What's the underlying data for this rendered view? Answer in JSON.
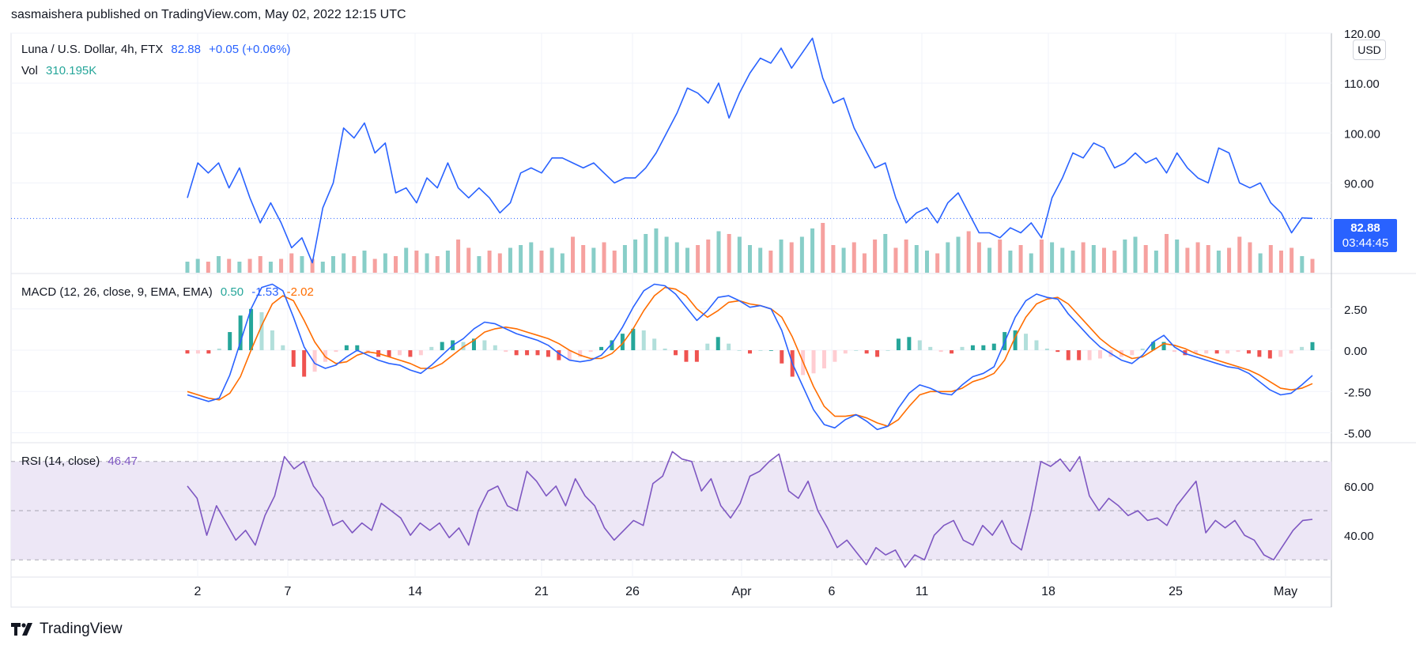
{
  "header": {
    "published_by": "sasmaishera published on TradingView.com, May 02, 2022 12:15 UTC"
  },
  "price_pane": {
    "symbol_title": "Luna / U.S. Dollar, 4h, FTX",
    "last": "82.88",
    "change": "+0.05 (+0.06%)",
    "vol_label": "Vol",
    "vol_value": "310.195K",
    "currency": "USD",
    "tag_price": "82.88",
    "tag_countdown": "03:44:45"
  },
  "macd_pane": {
    "title": "MACD (12, 26, close, 9, EMA, EMA)",
    "hist": "0.50",
    "macd": "-1.53",
    "signal": "-2.02"
  },
  "rsi_pane": {
    "title": "RSI (14, close)",
    "value": "46.47"
  },
  "brand": {
    "name": "TradingView"
  },
  "colors": {
    "price_line": "#2962ff",
    "vol_up": "#26a69a",
    "vol_down": "#ef5350",
    "macd_line": "#2962ff",
    "signal_line": "#ff6d00",
    "rsi_line": "#7e57c2",
    "rsi_band": "#ede7f6",
    "grid": "#f0f3fa"
  },
  "chart_data": [
    {
      "type": "line",
      "pane": "price",
      "x_ticks": [
        "2",
        "7",
        "14",
        "21",
        "26",
        "Apr",
        "6",
        "11",
        "18",
        "25",
        "May"
      ],
      "y_ticks": [
        "120.00",
        "110.00",
        "100.00",
        "90.00"
      ],
      "ylim": [
        72,
        120
      ],
      "series": [
        {
          "values": [
            87,
            94,
            92,
            94,
            89,
            93,
            87,
            82,
            86,
            82,
            77,
            79,
            74,
            85,
            90,
            101,
            99,
            102,
            96,
            98,
            88,
            89,
            86,
            91,
            89,
            94,
            89,
            87,
            89,
            87,
            84,
            86,
            92,
            93,
            92,
            95,
            95,
            94,
            93,
            94,
            92,
            90,
            91,
            91,
            93,
            96,
            100,
            104,
            109,
            108,
            106,
            110,
            103,
            108,
            112,
            115,
            114,
            117,
            113,
            116,
            119,
            111,
            106,
            107,
            101,
            97,
            93,
            94,
            87,
            82,
            84,
            85,
            82,
            86,
            88,
            84,
            80,
            80,
            79,
            81,
            80,
            82,
            79,
            87,
            91,
            96,
            95,
            98,
            97,
            93,
            94,
            96,
            94,
            95,
            92,
            96,
            93,
            91,
            90,
            97,
            96,
            90,
            89,
            90,
            86,
            84,
            80,
            83,
            82.88
          ]
        },
        {
          "name": "Vol",
          "values": [
            4,
            5,
            4,
            6,
            5,
            4,
            5,
            6,
            4,
            5,
            7,
            6,
            5,
            4,
            6,
            7,
            6,
            8,
            5,
            7,
            6,
            9,
            8,
            7,
            6,
            8,
            12,
            9,
            6,
            8,
            7,
            9,
            10,
            11,
            8,
            9,
            7,
            13,
            10,
            9,
            11,
            8,
            10,
            12,
            14,
            16,
            13,
            11,
            9,
            10,
            12,
            15,
            14,
            13,
            10,
            9,
            8,
            12,
            11,
            13,
            16,
            18,
            10,
            9,
            11,
            7,
            12,
            14,
            9,
            12,
            10,
            8,
            7,
            11,
            13,
            15,
            11,
            9,
            12,
            8,
            10,
            7,
            12,
            11,
            9,
            8,
            11,
            10,
            9,
            8,
            12,
            13,
            10,
            8,
            14,
            12,
            9,
            11,
            10,
            8,
            9,
            13,
            11,
            7,
            10,
            8,
            9,
            6,
            5
          ]
        }
      ]
    },
    {
      "type": "line",
      "pane": "macd",
      "y_ticks": [
        "2.50",
        "0.00",
        "-2.50",
        "-5.00"
      ],
      "ylim": [
        -5.5,
        4.5
      ],
      "series": [
        {
          "name": "MACD",
          "values": [
            -2.7,
            -2.9,
            -3.1,
            -2.9,
            -1.5,
            0.5,
            2.5,
            3.8,
            4.0,
            3.6,
            2.0,
            0.2,
            -0.8,
            -1.1,
            -0.9,
            -0.4,
            0.0,
            -0.3,
            -0.6,
            -0.8,
            -0.9,
            -1.2,
            -1.4,
            -0.9,
            -0.3,
            0.3,
            0.7,
            1.3,
            1.7,
            1.6,
            1.3,
            1.0,
            0.8,
            0.6,
            0.3,
            -0.2,
            -0.6,
            -0.7,
            -0.6,
            -0.3,
            0.4,
            1.4,
            2.6,
            3.6,
            4.0,
            3.9,
            3.4,
            2.6,
            1.8,
            2.4,
            3.2,
            3.3,
            3.0,
            2.6,
            2.7,
            2.5,
            1.2,
            -0.8,
            -2.2,
            -3.6,
            -4.5,
            -4.7,
            -4.2,
            -3.9,
            -4.3,
            -4.8,
            -4.6,
            -3.5,
            -2.6,
            -2.1,
            -2.3,
            -2.6,
            -2.7,
            -2.1,
            -1.6,
            -1.4,
            -1.0,
            0.5,
            2.0,
            3.0,
            3.4,
            3.2,
            3.1,
            2.2,
            1.5,
            0.8,
            0.2,
            -0.2,
            -0.6,
            -0.8,
            -0.3,
            0.5,
            0.9,
            0.2,
            -0.2,
            -0.4,
            -0.6,
            -0.8,
            -1.0,
            -1.1,
            -1.4,
            -1.9,
            -2.4,
            -2.7,
            -2.6,
            -2.1,
            -1.53
          ]
        },
        {
          "name": "Signal",
          "values": [
            -2.5,
            -2.7,
            -2.9,
            -3.0,
            -2.6,
            -1.6,
            0.0,
            1.5,
            2.8,
            3.3,
            3.0,
            1.8,
            0.5,
            -0.4,
            -0.8,
            -0.7,
            -0.3,
            -0.1,
            -0.2,
            -0.4,
            -0.6,
            -0.8,
            -1.1,
            -1.1,
            -0.8,
            -0.3,
            0.2,
            0.6,
            1.1,
            1.3,
            1.4,
            1.3,
            1.1,
            0.9,
            0.7,
            0.4,
            0.0,
            -0.3,
            -0.5,
            -0.5,
            -0.2,
            0.4,
            1.3,
            2.4,
            3.3,
            3.8,
            3.7,
            3.3,
            2.5,
            2.0,
            2.4,
            2.9,
            3.0,
            2.8,
            2.7,
            2.5,
            2.0,
            0.8,
            -0.7,
            -2.2,
            -3.4,
            -4.0,
            -4.0,
            -3.9,
            -4.1,
            -4.4,
            -4.6,
            -4.2,
            -3.4,
            -2.7,
            -2.5,
            -2.5,
            -2.5,
            -2.3,
            -1.9,
            -1.7,
            -1.4,
            -0.6,
            0.8,
            2.0,
            2.8,
            3.1,
            3.2,
            2.8,
            2.1,
            1.4,
            0.7,
            0.2,
            -0.2,
            -0.5,
            -0.4,
            0.0,
            0.4,
            0.3,
            0.1,
            -0.2,
            -0.4,
            -0.6,
            -0.8,
            -1.0,
            -1.2,
            -1.5,
            -1.9,
            -2.3,
            -2.4,
            -2.3,
            -2.02
          ]
        }
      ]
    },
    {
      "type": "line",
      "pane": "rsi",
      "y_ticks": [
        "60.00",
        "40.00"
      ],
      "ylim": [
        23,
        77
      ],
      "series": [
        {
          "name": "RSI",
          "values": [
            60,
            55,
            40,
            52,
            45,
            38,
            42,
            36,
            48,
            56,
            72,
            67,
            70,
            60,
            55,
            44,
            46,
            41,
            45,
            42,
            53,
            50,
            47,
            40,
            45,
            42,
            45,
            39,
            43,
            36,
            50,
            58,
            60,
            52,
            50,
            66,
            62,
            56,
            60,
            52,
            63,
            56,
            52,
            43,
            38,
            42,
            46,
            44,
            61,
            64,
            74,
            71,
            70,
            58,
            63,
            52,
            47,
            53,
            64,
            66,
            70,
            73,
            58,
            55,
            62,
            50,
            43,
            35,
            38,
            33,
            28,
            35,
            32,
            34,
            27,
            32,
            30,
            40,
            44,
            46,
            38,
            36,
            44,
            40,
            46,
            37,
            34,
            50,
            70,
            68,
            71,
            66,
            72,
            56,
            50,
            55,
            52,
            48,
            50,
            46,
            47,
            44,
            52,
            57,
            62,
            41,
            46,
            43,
            46,
            40,
            38,
            32,
            30,
            36,
            42,
            46,
            46.47
          ]
        }
      ]
    }
  ]
}
